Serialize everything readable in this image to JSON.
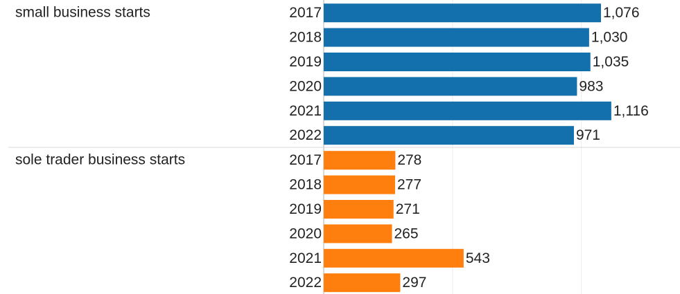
{
  "chart_data": {
    "type": "bar",
    "orientation": "horizontal",
    "categories": [
      "2017",
      "2018",
      "2019",
      "2020",
      "2021",
      "2022"
    ],
    "series": [
      {
        "name": "small business  starts",
        "color": "#1470ad",
        "values": [
          1076,
          1030,
          1035,
          983,
          1116,
          971
        ],
        "value_labels": [
          "1,076",
          "1,030",
          "1,035",
          "983",
          "1,116",
          "971"
        ]
      },
      {
        "name": "sole trader business starts",
        "color": "#ff7f0e",
        "values": [
          278,
          277,
          271,
          265,
          543,
          297
        ],
        "value_labels": [
          "278",
          "277",
          "271",
          "265",
          "543",
          "297"
        ]
      }
    ],
    "xlim": [
      0,
      1380
    ],
    "xticks": [
      0,
      500,
      1000
    ],
    "grid": true
  }
}
